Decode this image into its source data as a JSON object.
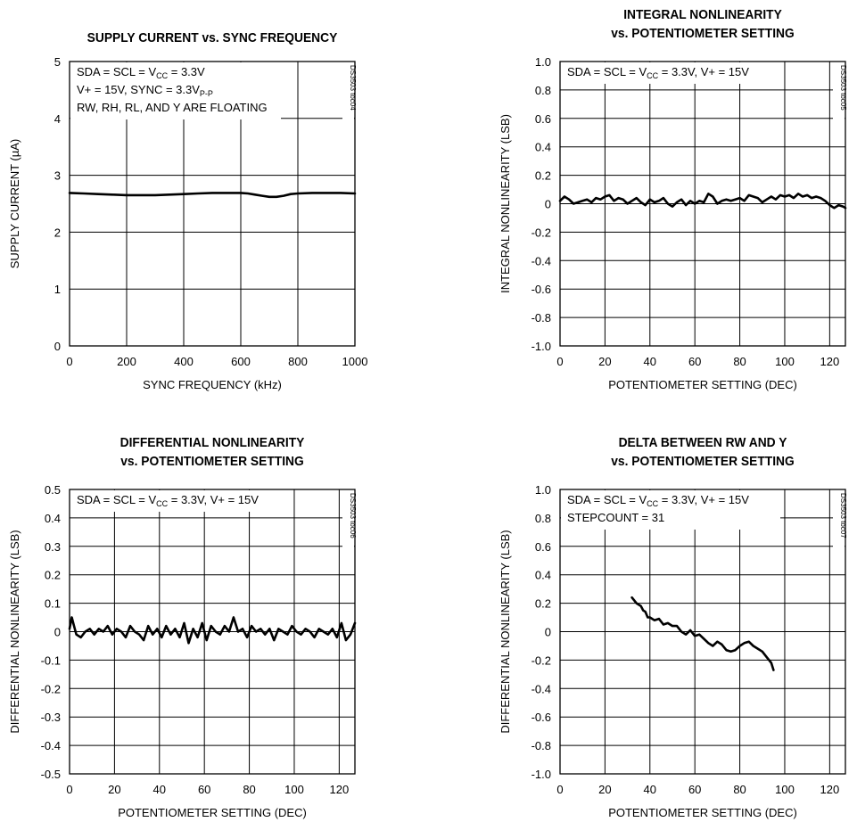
{
  "chart_data": [
    {
      "type": "line",
      "title": [
        "SUPPLY CURRENT vs. SYNC FREQUENCY"
      ],
      "xlabel": "SYNC FREQUENCY (kHz)",
      "ylabel": "SUPPLY CURRENT (µA)",
      "xlim": [
        0,
        1000
      ],
      "ylim": [
        0,
        5
      ],
      "xticks": [
        "0",
        "200",
        "400",
        "600",
        "800",
        "1000"
      ],
      "yticks": [
        "0",
        "1",
        "2",
        "3",
        "4",
        "5"
      ],
      "grid": true,
      "annotations": [
        {
          "parts": [
            [
              "SDA = SCL = V",
              ""
            ],
            [
              "CC",
              "sub"
            ],
            [
              " = 3.3V",
              ""
            ]
          ]
        },
        {
          "parts": [
            [
              "V+ = 15V, SYNC = 3.3V",
              ""
            ],
            [
              "P-P",
              "sub"
            ]
          ]
        },
        {
          "parts": [
            [
              "RW, RH, RL, AND Y ARE FLOATING",
              ""
            ]
          ]
        }
      ],
      "code": "DS3503 toc04",
      "series": [
        {
          "x": [
            0,
            50,
            100,
            150,
            200,
            250,
            300,
            350,
            400,
            450,
            500,
            550,
            600,
            625,
            650,
            675,
            700,
            725,
            750,
            775,
            800,
            850,
            900,
            950,
            1000
          ],
          "y": [
            2.69,
            2.68,
            2.67,
            2.66,
            2.65,
            2.65,
            2.65,
            2.66,
            2.67,
            2.68,
            2.69,
            2.69,
            2.69,
            2.68,
            2.66,
            2.64,
            2.62,
            2.62,
            2.64,
            2.67,
            2.68,
            2.69,
            2.69,
            2.69,
            2.68
          ]
        }
      ]
    },
    {
      "type": "line",
      "title": [
        "INTEGRAL NONLINEARITY",
        "vs. POTENTIOMETER SETTING"
      ],
      "xlabel": "POTENTIOMETER SETTING (DEC)",
      "ylabel": "INTEGRAL NONLINEARITY (LSB)",
      "xlim": [
        0,
        127
      ],
      "ylim": [
        -1.0,
        1.0
      ],
      "xticks": [
        "0",
        "20",
        "40",
        "60",
        "80",
        "100",
        "120"
      ],
      "yticks": [
        "-1.0",
        "-0.8",
        "-0.6",
        "-0.4",
        "-0.2",
        "0",
        "0.2",
        "0.4",
        "0.6",
        "0.8",
        "1.0"
      ],
      "grid": true,
      "annotations": [
        {
          "parts": [
            [
              "SDA = SCL = V",
              ""
            ],
            [
              "CC",
              "sub"
            ],
            [
              " = 3.3V, V+ = 15V",
              ""
            ]
          ]
        }
      ],
      "code": "DS3503 toc05",
      "series": [
        {
          "x": [
            0,
            2,
            4,
            6,
            8,
            10,
            12,
            14,
            16,
            18,
            20,
            22,
            24,
            26,
            28,
            30,
            32,
            34,
            36,
            38,
            40,
            42,
            44,
            46,
            48,
            50,
            52,
            54,
            56,
            58,
            60,
            62,
            64,
            66,
            68,
            70,
            72,
            74,
            76,
            78,
            80,
            82,
            84,
            86,
            88,
            90,
            92,
            94,
            96,
            98,
            100,
            102,
            104,
            106,
            108,
            110,
            112,
            114,
            116,
            118,
            120,
            122,
            124,
            126,
            127
          ],
          "y": [
            0.02,
            0.05,
            0.03,
            0.0,
            0.01,
            0.02,
            0.03,
            0.01,
            0.04,
            0.03,
            0.05,
            0.06,
            0.02,
            0.04,
            0.03,
            0.0,
            0.02,
            0.04,
            0.01,
            -0.01,
            0.03,
            0.01,
            0.02,
            0.04,
            0.0,
            -0.02,
            0.01,
            0.03,
            -0.01,
            0.02,
            0.0,
            0.02,
            0.01,
            0.07,
            0.05,
            0.0,
            0.02,
            0.03,
            0.02,
            0.03,
            0.04,
            0.02,
            0.06,
            0.05,
            0.04,
            0.01,
            0.03,
            0.05,
            0.03,
            0.06,
            0.05,
            0.06,
            0.04,
            0.07,
            0.05,
            0.06,
            0.04,
            0.05,
            0.04,
            0.02,
            -0.01,
            -0.03,
            -0.01,
            -0.02,
            -0.03
          ]
        }
      ]
    },
    {
      "type": "line",
      "title": [
        "DIFFERENTIAL NONLINEARITY",
        "vs. POTENTIOMETER SETTING"
      ],
      "xlabel": "POTENTIOMETER SETTING (DEC)",
      "ylabel": "DIFFERENTIAL NONLINEARITY (LSB)",
      "xlim": [
        0,
        127
      ],
      "ylim": [
        -0.5,
        0.5
      ],
      "xticks": [
        "0",
        "20",
        "40",
        "60",
        "80",
        "100",
        "120"
      ],
      "yticks": [
        "-0.5",
        "-0.4",
        "-0.3",
        "-0.2",
        "-0.1",
        "0",
        "0.1",
        "0.2",
        "0.3",
        "0.4",
        "0.5"
      ],
      "grid": true,
      "annotations": [
        {
          "parts": [
            [
              "SDA = SCL = V",
              ""
            ],
            [
              "CC",
              "sub"
            ],
            [
              " = 3.3V, V+ = 15V",
              ""
            ]
          ]
        }
      ],
      "code": "DS3503 toc06",
      "series": [
        {
          "x": [
            0,
            1,
            2,
            3,
            5,
            7,
            9,
            11,
            13,
            15,
            17,
            19,
            21,
            23,
            25,
            27,
            29,
            31,
            33,
            35,
            37,
            39,
            41,
            43,
            45,
            47,
            49,
            51,
            53,
            55,
            57,
            59,
            61,
            63,
            65,
            67,
            69,
            71,
            73,
            75,
            77,
            79,
            81,
            83,
            85,
            87,
            89,
            91,
            93,
            95,
            97,
            99,
            101,
            103,
            105,
            107,
            109,
            111,
            113,
            115,
            117,
            119,
            121,
            123,
            125,
            127
          ],
          "y": [
            0.01,
            0.05,
            0.02,
            -0.01,
            -0.02,
            0.0,
            0.01,
            -0.01,
            0.01,
            0.0,
            0.02,
            -0.01,
            0.01,
            0.0,
            -0.02,
            0.02,
            0.0,
            -0.01,
            -0.03,
            0.02,
            -0.01,
            0.01,
            -0.02,
            0.02,
            -0.01,
            0.01,
            -0.02,
            0.03,
            -0.04,
            0.01,
            -0.02,
            0.03,
            -0.03,
            0.02,
            0.0,
            -0.01,
            0.02,
            0.0,
            0.05,
            0.0,
            0.01,
            -0.02,
            0.02,
            0.0,
            0.01,
            -0.01,
            0.01,
            -0.03,
            0.01,
            0.0,
            -0.01,
            0.02,
            0.0,
            -0.01,
            0.01,
            0.0,
            -0.02,
            0.01,
            0.0,
            -0.01,
            0.01,
            -0.02,
            0.03,
            -0.03,
            -0.01,
            0.03
          ]
        }
      ]
    },
    {
      "type": "line",
      "title": [
        "DELTA BETWEEN RW AND Y",
        "vs. POTENTIOMETER SETTING"
      ],
      "xlabel": "POTENTIOMETER SETTING (DEC)",
      "ylabel": "DIFFERENTIAL NONLINEARITY (LSB)",
      "xlim": [
        0,
        127
      ],
      "ylim": [
        -1.0,
        1.0
      ],
      "xticks": [
        "0",
        "20",
        "40",
        "60",
        "80",
        "100",
        "120"
      ],
      "yticks": [
        "-1.0",
        "-0.8",
        "-0.6",
        "-0.4",
        "-0.2",
        "0",
        "0.2",
        "0.4",
        "0.6",
        "0.8",
        "1.0"
      ],
      "grid": true,
      "annotations": [
        {
          "parts": [
            [
              "SDA = SCL = V",
              ""
            ],
            [
              "CC",
              "sub"
            ],
            [
              " = 3.3V, V+ = 15V",
              ""
            ]
          ]
        },
        {
          "parts": [
            [
              "STEPCOUNT = 31",
              ""
            ]
          ]
        }
      ],
      "code": "DS3503 toc07",
      "series": [
        {
          "x": [
            32,
            34,
            36,
            37,
            38,
            39,
            40,
            42,
            44,
            46,
            48,
            50,
            52,
            54,
            56,
            58,
            60,
            62,
            64,
            66,
            68,
            70,
            72,
            74,
            76,
            78,
            80,
            82,
            84,
            86,
            88,
            90,
            92,
            94,
            95
          ],
          "y": [
            0.24,
            0.2,
            0.18,
            0.15,
            0.14,
            0.1,
            0.1,
            0.08,
            0.09,
            0.05,
            0.06,
            0.04,
            0.04,
            0.0,
            -0.02,
            0.01,
            -0.03,
            -0.02,
            -0.05,
            -0.08,
            -0.1,
            -0.07,
            -0.09,
            -0.13,
            -0.14,
            -0.13,
            -0.1,
            -0.08,
            -0.07,
            -0.1,
            -0.12,
            -0.14,
            -0.18,
            -0.22,
            -0.27
          ]
        }
      ]
    }
  ]
}
